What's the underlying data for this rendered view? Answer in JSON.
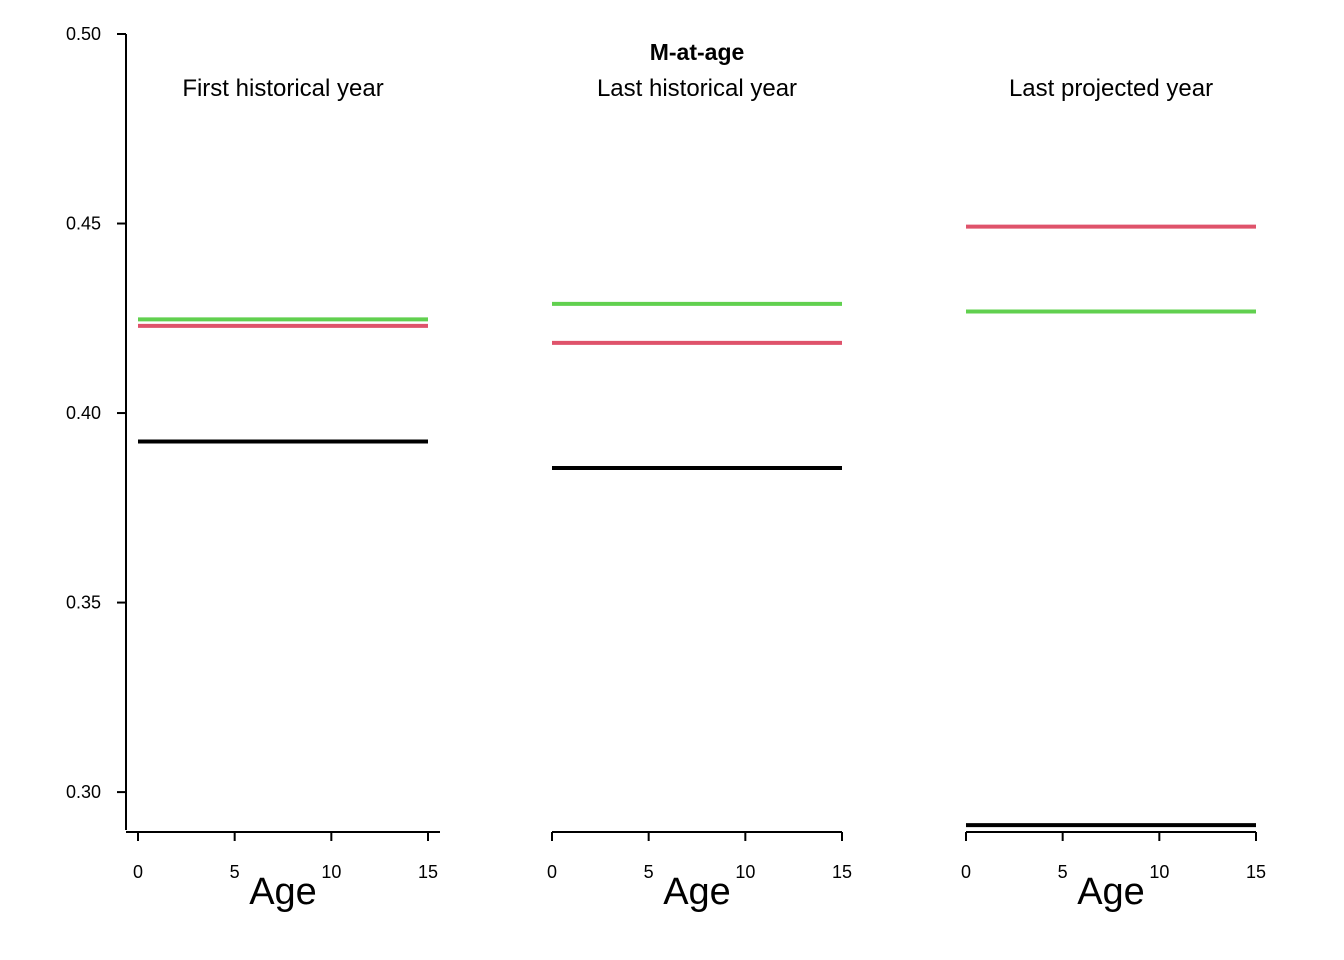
{
  "chart_data": {
    "type": "line",
    "title": "M-at-age",
    "ylim": [
      0.29,
      0.5
    ],
    "y_ticks": [
      0.3,
      0.35,
      0.4,
      0.45,
      0.5
    ],
    "y_tick_labels": [
      "0.30",
      "0.35",
      "0.40",
      "0.45",
      "0.50"
    ],
    "xlim": [
      0,
      15
    ],
    "x_ticks": [
      0,
      5,
      10,
      15
    ],
    "x_tick_labels": [
      "0",
      "5",
      "10",
      "15"
    ],
    "xlabel": "Age",
    "ylabel": "",
    "grid": false,
    "series_colors": [
      "#000000",
      "#DF536B",
      "#61D04F"
    ],
    "panels": [
      {
        "title": "First historical year",
        "series": [
          {
            "color": "#000000",
            "x": [
              0,
              15
            ],
            "y": [
              0.3925,
              0.3925
            ]
          },
          {
            "color": "#DF536B",
            "x": [
              0,
              15
            ],
            "y": [
              0.423,
              0.423
            ]
          },
          {
            "color": "#61D04F",
            "x": [
              0,
              15
            ],
            "y": [
              0.4247,
              0.4247
            ]
          }
        ]
      },
      {
        "title": "Last historical year",
        "series": [
          {
            "color": "#000000",
            "x": [
              0,
              15
            ],
            "y": [
              0.3855,
              0.3855
            ]
          },
          {
            "color": "#DF536B",
            "x": [
              0,
              15
            ],
            "y": [
              0.4185,
              0.4185
            ]
          },
          {
            "color": "#61D04F",
            "x": [
              0,
              15
            ],
            "y": [
              0.4288,
              0.4288
            ]
          }
        ]
      },
      {
        "title": "Last projected year",
        "series": [
          {
            "color": "#000000",
            "x": [
              0,
              15
            ],
            "y": [
              0.2913,
              0.2913
            ]
          },
          {
            "color": "#DF536B",
            "x": [
              0,
              15
            ],
            "y": [
              0.4492,
              0.4492
            ]
          },
          {
            "color": "#61D04F",
            "x": [
              0,
              15
            ],
            "y": [
              0.4268,
              0.4268
            ]
          }
        ]
      }
    ]
  }
}
